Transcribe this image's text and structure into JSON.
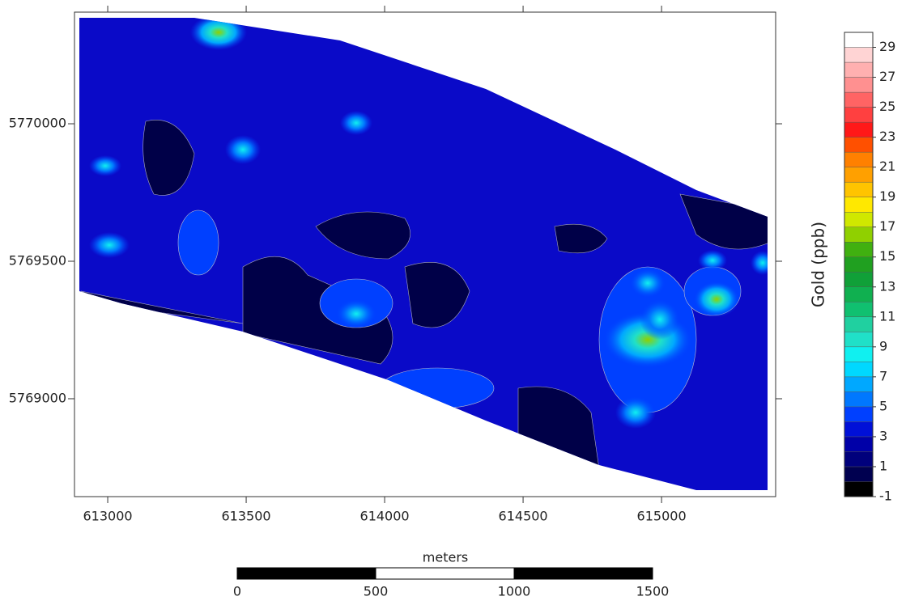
{
  "map": {
    "xlim": [
      612880,
      615412
    ],
    "ylim": [
      5768644,
      5770406
    ],
    "xticks": [
      613000,
      613500,
      614000,
      614500,
      615000
    ],
    "yticks": [
      5769000,
      5769500,
      5770000
    ],
    "colorbar": {
      "label": "Gold (ppb)",
      "lim": [
        -1,
        30
      ],
      "ticks": [
        29,
        27,
        25,
        23,
        21,
        19,
        17,
        15,
        13,
        11,
        9,
        7,
        5,
        3,
        1,
        -1
      ],
      "bands": [
        {
          "from": -1,
          "color": "#000000"
        },
        {
          "from": 0,
          "color": "#000050"
        },
        {
          "from": 1,
          "color": "#00007c"
        },
        {
          "from": 2,
          "color": "#0000a8"
        },
        {
          "from": 3,
          "color": "#0010d8"
        },
        {
          "from": 4,
          "color": "#0040ff"
        },
        {
          "from": 5,
          "color": "#0078ff"
        },
        {
          "from": 6,
          "color": "#00a8ff"
        },
        {
          "from": 7,
          "color": "#00d8ff"
        },
        {
          "from": 8,
          "color": "#10f0f0"
        },
        {
          "from": 9,
          "color": "#20e0c8"
        },
        {
          "from": 10,
          "color": "#20d0a0"
        },
        {
          "from": 11,
          "color": "#10c070"
        },
        {
          "from": 12,
          "color": "#10b050"
        },
        {
          "from": 13,
          "color": "#10a038"
        },
        {
          "from": 14,
          "color": "#20a020"
        },
        {
          "from": 15,
          "color": "#40b010"
        },
        {
          "from": 16,
          "color": "#90d000"
        },
        {
          "from": 17,
          "color": "#d0e800"
        },
        {
          "from": 18,
          "color": "#ffe800"
        },
        {
          "from": 19,
          "color": "#ffc400"
        },
        {
          "from": 20,
          "color": "#ffa000"
        },
        {
          "from": 21,
          "color": "#ff8000"
        },
        {
          "from": 22,
          "color": "#ff5000"
        },
        {
          "from": 23,
          "color": "#ff1818"
        },
        {
          "from": 24,
          "color": "#ff4040"
        },
        {
          "from": 25,
          "color": "#ff6464"
        },
        {
          "from": 26,
          "color": "#ff9090"
        },
        {
          "from": 27,
          "color": "#ffb0b0"
        },
        {
          "from": 28,
          "color": "#ffd4d4"
        },
        {
          "from": 29,
          "color": "#ffffff"
        }
      ]
    },
    "scale_bar": {
      "label": "meters",
      "ticks": [
        0,
        500,
        1000,
        1500
      ]
    }
  }
}
